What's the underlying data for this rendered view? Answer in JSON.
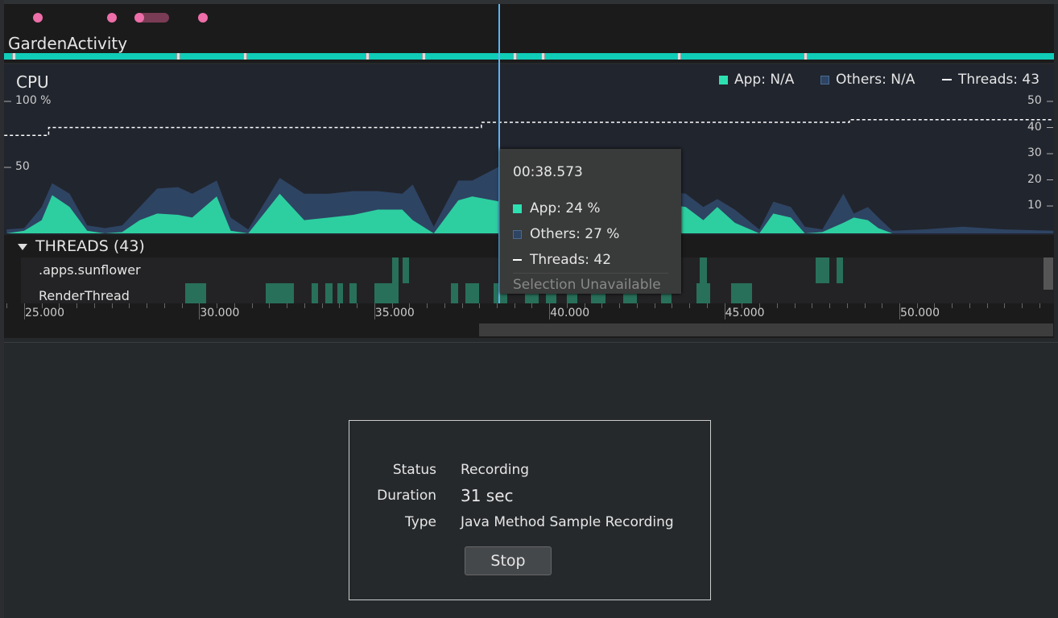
{
  "events": {
    "dots": [
      25.4,
      27.5,
      28.3,
      30.1
    ],
    "bar": [
      28.3,
      29.0
    ]
  },
  "activity": {
    "name": "GardenActivity",
    "markers": [
      24.7,
      29.4,
      31.3,
      34.8,
      36.4,
      39.0,
      39.8,
      43.7,
      47.3
    ],
    "color": "#10cdb8"
  },
  "cpu": {
    "title": "CPU",
    "left_ticks": [
      {
        "v": 100,
        "label": "100 %"
      },
      {
        "v": 50,
        "label": "50"
      }
    ],
    "right_ticks": [
      {
        "v": 50,
        "label": "50"
      },
      {
        "v": 40,
        "label": "40"
      },
      {
        "v": 30,
        "label": "30"
      },
      {
        "v": 20,
        "label": "20"
      },
      {
        "v": 10,
        "label": "10"
      }
    ],
    "legend": {
      "app": "App: N/A",
      "others": "Others: N/A",
      "threads": "Threads: 43"
    },
    "colors": {
      "app": "#2dcfa0",
      "others": "#2e4463",
      "threads": "#ffffff",
      "cursor": "#5db3f0"
    }
  },
  "chart_data": {
    "type": "area",
    "xlabel": "",
    "ylabel": "",
    "xlim": [
      24.43,
      54.4
    ],
    "ylim": [
      0,
      100
    ],
    "y2lim": [
      0,
      50
    ],
    "x": [
      24.5,
      25.0,
      25.5,
      25.8,
      26.3,
      26.8,
      27.3,
      27.8,
      28.3,
      28.8,
      29.4,
      29.8,
      30.5,
      30.9,
      31.4,
      32.3,
      33.0,
      33.7,
      34.4,
      35.1,
      35.8,
      36.1,
      36.7,
      37.4,
      37.8,
      38.6,
      39.5,
      40.5,
      41.5,
      42.5,
      43.4,
      43.9,
      44.4,
      44.8,
      45.3,
      46.0,
      46.4,
      46.9,
      47.3,
      47.8,
      48.4,
      48.7,
      49.1,
      49.4,
      49.8,
      50.7,
      51.8,
      53.0,
      54.4
    ],
    "series": [
      {
        "name": "App",
        "values": [
          0,
          2,
          10,
          29,
          20,
          2,
          0,
          1,
          10,
          15,
          14,
          12,
          28,
          2,
          0,
          30,
          10,
          12,
          14,
          18,
          18,
          10,
          0,
          25,
          28,
          24,
          26,
          22,
          20,
          18,
          22,
          20,
          10,
          20,
          8,
          0,
          15,
          12,
          0,
          1,
          8,
          12,
          10,
          4,
          0,
          0,
          0,
          0,
          0
        ]
      },
      {
        "name": "Others",
        "values": [
          3,
          2,
          10,
          9,
          10,
          4,
          4,
          5,
          10,
          19,
          21,
          18,
          12,
          10,
          3,
          12,
          20,
          18,
          18,
          14,
          12,
          27,
          5,
          15,
          12,
          27,
          22,
          16,
          15,
          14,
          10,
          10,
          10,
          6,
          10,
          3,
          9,
          8,
          5,
          2,
          22,
          3,
          10,
          8,
          2,
          3,
          5,
          3,
          2
        ]
      }
    ],
    "threads_steps": [
      {
        "from": 24.43,
        "value": 37
      },
      {
        "from": 25.7,
        "value": 40
      },
      {
        "from": 38.06,
        "value": 42
      },
      {
        "from": 48.57,
        "value": 43
      }
    ],
    "cursor": 38.573
  },
  "tooltip": {
    "time": "00:38.573",
    "app": "App: 24 %",
    "others": "Others: 27 %",
    "threads": "Threads: 42",
    "selection": "Selection Unavailable"
  },
  "threads": {
    "header": "THREADS (43)",
    "rows": [
      {
        "name": ".apps.sunflower",
        "segments": [
          [
            35.5,
            35.7
          ],
          [
            35.8,
            36.0
          ],
          [
            40.3,
            40.5
          ],
          [
            44.3,
            44.5
          ],
          [
            47.6,
            48.0
          ],
          [
            48.2,
            48.4
          ]
        ]
      },
      {
        "name": "RenderThread",
        "segments": [
          [
            29.6,
            30.2
          ],
          [
            31.9,
            32.7
          ],
          [
            33.2,
            33.4
          ],
          [
            33.6,
            33.8
          ],
          [
            33.95,
            34.1
          ],
          [
            34.3,
            34.5
          ],
          [
            35.0,
            35.7
          ],
          [
            37.2,
            37.4
          ],
          [
            37.6,
            38.0
          ],
          [
            38.4,
            38.8
          ],
          [
            39.3,
            39.7
          ],
          [
            39.9,
            40.2
          ],
          [
            40.5,
            40.8
          ],
          [
            41.2,
            41.6
          ],
          [
            42.1,
            42.5
          ],
          [
            43.2,
            43.5
          ],
          [
            44.2,
            44.6
          ],
          [
            45.2,
            45.8
          ]
        ]
      }
    ]
  },
  "axis": {
    "ticks": [
      {
        "v": 25,
        "label": "25.000"
      },
      {
        "v": 30,
        "label": "30.000"
      },
      {
        "v": 35,
        "label": "35.000"
      },
      {
        "v": 40,
        "label": "40.000"
      },
      {
        "v": 45,
        "label": "45.000"
      },
      {
        "v": 50,
        "label": "50.000"
      }
    ]
  },
  "recording": {
    "status_label": "Status",
    "status": "Recording",
    "duration_label": "Duration",
    "duration": "31 sec",
    "type_label": "Type",
    "type": "Java Method Sample Recording",
    "stop": "Stop"
  }
}
